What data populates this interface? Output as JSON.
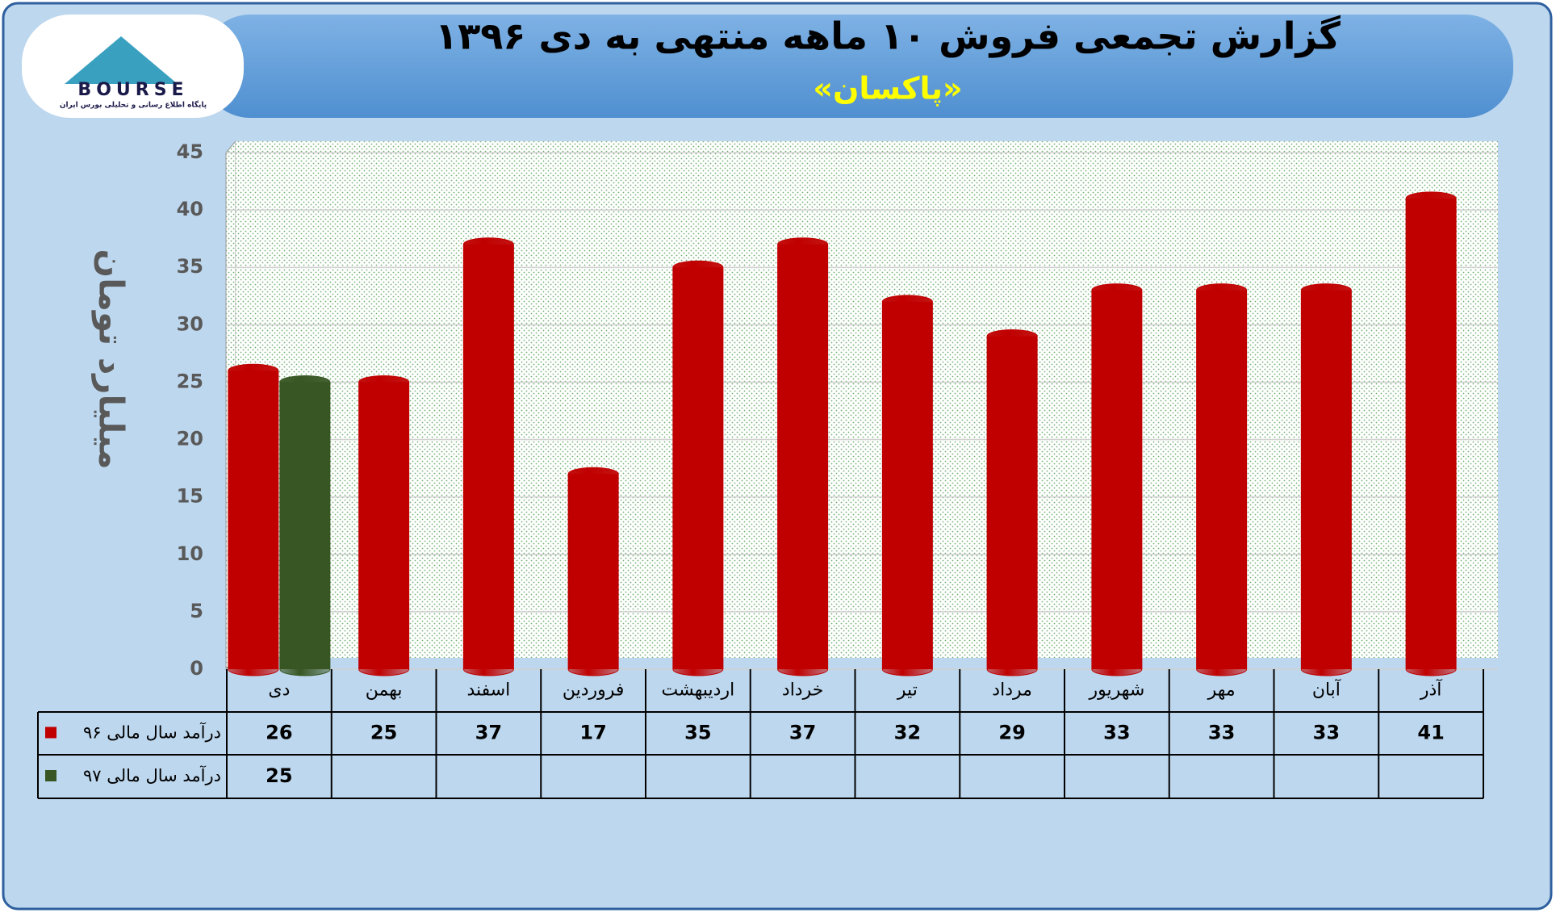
{
  "logo": {
    "name": "BOURSE",
    "tagline": "پایگاه اطلاع رسانی و تحلیلی بورس ایران"
  },
  "chart_data": {
    "type": "bar",
    "title": "گزارش تجمعی فروش ۱۰ ماهه منتهی به دی ۱۳۹۶",
    "subtitle": "«پاکسان»",
    "y_label": "میلیارد تومان",
    "categories": [
      "دی",
      "بهمن",
      "اسفند",
      "فروردین",
      "اردیبهشت",
      "خرداد",
      "تیر",
      "مرداد",
      "شهریور",
      "مهر",
      "آبان",
      "آذر"
    ],
    "series": [
      {
        "name": "درآمد سال مالی ۹۶",
        "color": "#c00000",
        "values": [
          26,
          25,
          37,
          17,
          35,
          37,
          32,
          29,
          33,
          33,
          33,
          41
        ]
      },
      {
        "name": "درآمد سال مالی ۹۷",
        "color": "#375623",
        "values": [
          25,
          null,
          null,
          null,
          null,
          null,
          null,
          null,
          null,
          null,
          null,
          null
        ]
      }
    ],
    "ylim": [
      0,
      45
    ],
    "yticks": [
      0,
      5,
      10,
      15,
      20,
      25,
      30,
      35,
      40,
      45
    ],
    "grid": true
  }
}
